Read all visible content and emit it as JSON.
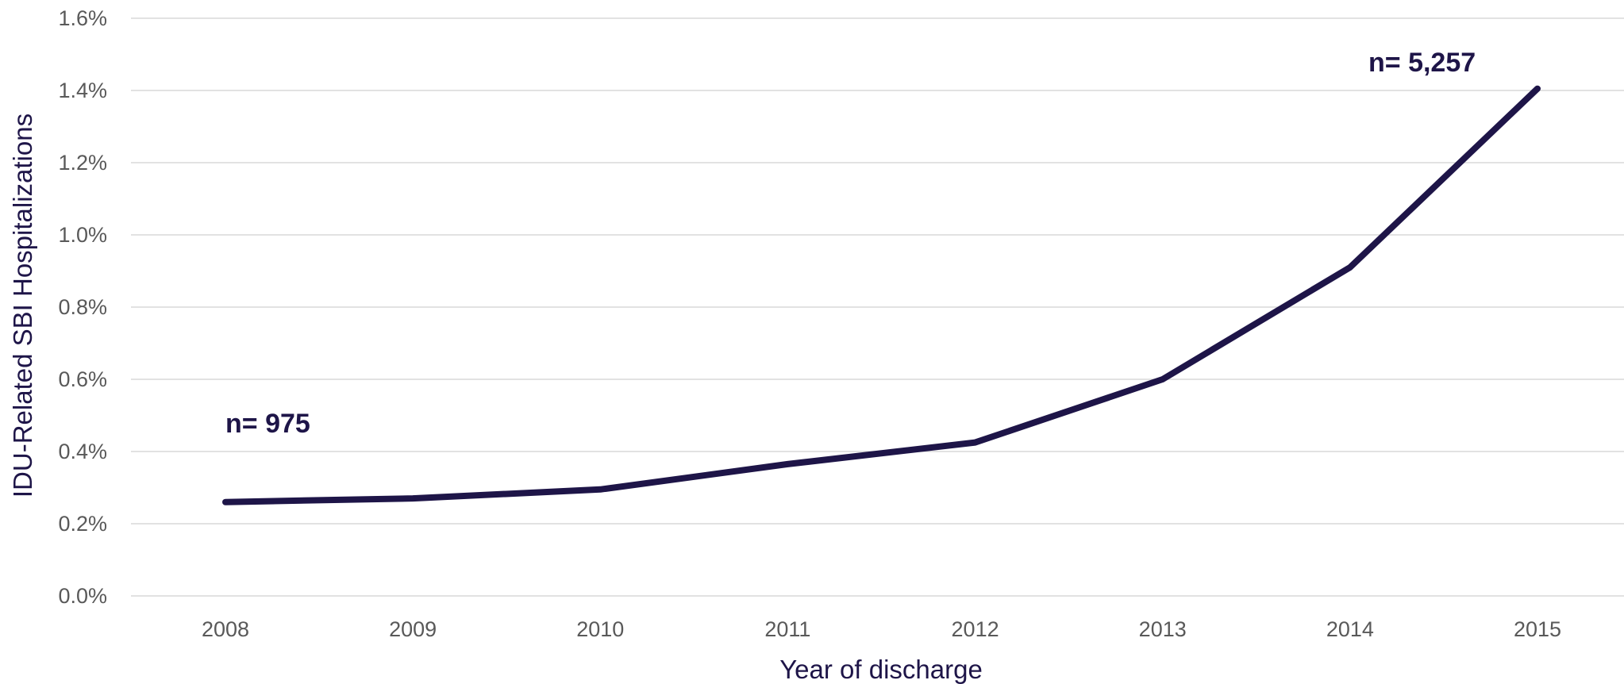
{
  "chart_data": {
    "type": "line",
    "title": "",
    "xlabel": "Year of discharge",
    "ylabel": "IDU-Related SBI Hospitalizations",
    "categories": [
      "2008",
      "2009",
      "2010",
      "2011",
      "2012",
      "2013",
      "2014",
      "2015"
    ],
    "series": [
      {
        "values": [
          0.26,
          0.27,
          0.295,
          0.365,
          0.425,
          0.6,
          0.91,
          1.405
        ]
      }
    ],
    "ylim": [
      0,
      1.6
    ],
    "yticks": [
      0,
      0.2,
      0.4,
      0.6,
      0.8,
      1.0,
      1.2,
      1.4,
      1.6
    ],
    "ytick_labels": [
      "0.0%",
      "0.2%",
      "0.4%",
      "0.6%",
      "0.8%",
      "1.0%",
      "1.2%",
      "1.4%",
      "1.6%"
    ],
    "grid": "horizontal",
    "legend": "none",
    "line_color": "#1e1548",
    "annotations": [
      {
        "text": "n= 975",
        "category": "2008"
      },
      {
        "text": "n= 5,257",
        "category": "2015"
      }
    ]
  }
}
